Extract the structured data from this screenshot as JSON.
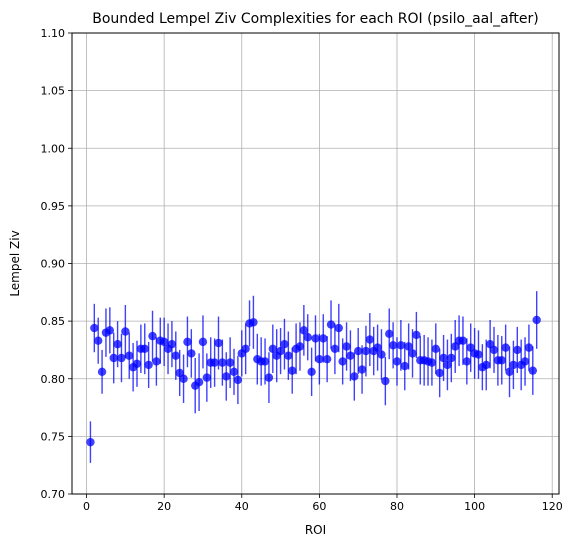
{
  "chart_data": {
    "type": "scatter",
    "title": "Bounded Lempel Ziv Complexities for each ROI (psilo_aal_after)",
    "xlabel": "ROI",
    "ylabel": "Lempel Ziv",
    "xlim": [
      -3.75,
      121.75
    ],
    "ylim": [
      0.7,
      1.1
    ],
    "xticks": [
      0,
      20,
      40,
      60,
      80,
      100,
      120
    ],
    "yticks": [
      0.7,
      0.75,
      0.8,
      0.85,
      0.9,
      0.95,
      1.0,
      1.05,
      1.1
    ],
    "xtick_labels": [
      "0",
      "20",
      "40",
      "60",
      "80",
      "100",
      "120"
    ],
    "ytick_labels": [
      "0.70",
      "0.75",
      "0.80",
      "0.85",
      "0.90",
      "0.95",
      "1.00",
      "1.05",
      "1.10"
    ],
    "grid": true,
    "marker_color": "#0000ff",
    "series": [
      {
        "x": [
          1,
          2,
          3,
          4,
          5,
          6,
          7,
          8,
          9,
          10,
          11,
          12,
          13,
          14,
          15,
          16,
          17,
          18,
          19,
          20,
          21,
          22,
          23,
          24,
          25,
          26,
          27,
          28,
          29,
          30,
          31,
          32,
          33,
          34,
          35,
          36,
          37,
          38,
          39,
          40,
          41,
          42,
          43,
          44,
          45,
          46,
          47,
          48,
          49,
          50,
          51,
          52,
          53,
          54,
          55,
          56,
          57,
          58,
          59,
          60,
          61,
          62,
          63,
          64,
          65,
          66,
          67,
          68,
          69,
          70,
          71,
          72,
          73,
          74,
          75,
          76,
          77,
          78,
          79,
          80,
          81,
          82,
          83,
          84,
          85,
          86,
          87,
          88,
          89,
          90,
          91,
          92,
          93,
          94,
          95,
          96,
          97,
          98,
          99,
          100,
          101,
          102,
          103,
          104,
          105,
          106,
          107,
          108,
          109,
          110,
          111,
          112,
          113,
          114,
          115,
          116
        ],
        "y": [
          0.745,
          0.844,
          0.833,
          0.806,
          0.84,
          0.842,
          0.818,
          0.83,
          0.818,
          0.841,
          0.82,
          0.81,
          0.813,
          0.826,
          0.826,
          0.812,
          0.837,
          0.815,
          0.833,
          0.832,
          0.826,
          0.83,
          0.82,
          0.805,
          0.8,
          0.832,
          0.822,
          0.794,
          0.797,
          0.832,
          0.801,
          0.814,
          0.814,
          0.831,
          0.814,
          0.802,
          0.814,
          0.806,
          0.799,
          0.822,
          0.826,
          0.848,
          0.849,
          0.817,
          0.815,
          0.815,
          0.801,
          0.826,
          0.82,
          0.824,
          0.83,
          0.82,
          0.807,
          0.826,
          0.828,
          0.842,
          0.836,
          0.806,
          0.835,
          0.817,
          0.835,
          0.817,
          0.847,
          0.826,
          0.844,
          0.815,
          0.828,
          0.82,
          0.802,
          0.824,
          0.808,
          0.824,
          0.834,
          0.824,
          0.827,
          0.821,
          0.798,
          0.839,
          0.829,
          0.815,
          0.829,
          0.811,
          0.828,
          0.822,
          0.838,
          0.816,
          0.816,
          0.815,
          0.814,
          0.826,
          0.805,
          0.818,
          0.812,
          0.818,
          0.828,
          0.833,
          0.833,
          0.815,
          0.827,
          0.822,
          0.821,
          0.81,
          0.812,
          0.83,
          0.825,
          0.816,
          0.816,
          0.827,
          0.806,
          0.812,
          0.825,
          0.812,
          0.815,
          0.827,
          0.807,
          0.851
        ],
        "err": [
          0.018,
          0.021,
          0.02,
          0.019,
          0.021,
          0.02,
          0.022,
          0.02,
          0.021,
          0.023,
          0.02,
          0.021,
          0.02,
          0.021,
          0.022,
          0.02,
          0.022,
          0.021,
          0.02,
          0.021,
          0.022,
          0.02,
          0.021,
          0.02,
          0.021,
          0.022,
          0.021,
          0.024,
          0.025,
          0.023,
          0.021,
          0.022,
          0.021,
          0.023,
          0.02,
          0.021,
          0.022,
          0.02,
          0.021,
          0.02,
          0.022,
          0.02,
          0.023,
          0.022,
          0.021,
          0.02,
          0.022,
          0.021,
          0.023,
          0.02,
          0.022,
          0.021,
          0.02,
          0.022,
          0.021,
          0.022,
          0.02,
          0.021,
          0.02,
          0.022,
          0.021,
          0.02,
          0.021,
          0.022,
          0.021,
          0.02,
          0.021,
          0.022,
          0.021,
          0.02,
          0.021,
          0.022,
          0.023,
          0.021,
          0.02,
          0.022,
          0.021,
          0.022,
          0.02,
          0.021,
          0.022,
          0.021,
          0.02,
          0.021,
          0.02,
          0.021,
          0.022,
          0.021,
          0.02,
          0.022,
          0.021,
          0.02,
          0.022,
          0.021,
          0.023,
          0.022,
          0.021,
          0.02,
          0.021,
          0.022,
          0.021,
          0.02,
          0.022,
          0.021,
          0.02,
          0.022,
          0.021,
          0.02,
          0.022,
          0.021,
          0.02,
          0.022,
          0.021,
          0.02,
          0.021,
          0.025
        ]
      }
    ]
  }
}
